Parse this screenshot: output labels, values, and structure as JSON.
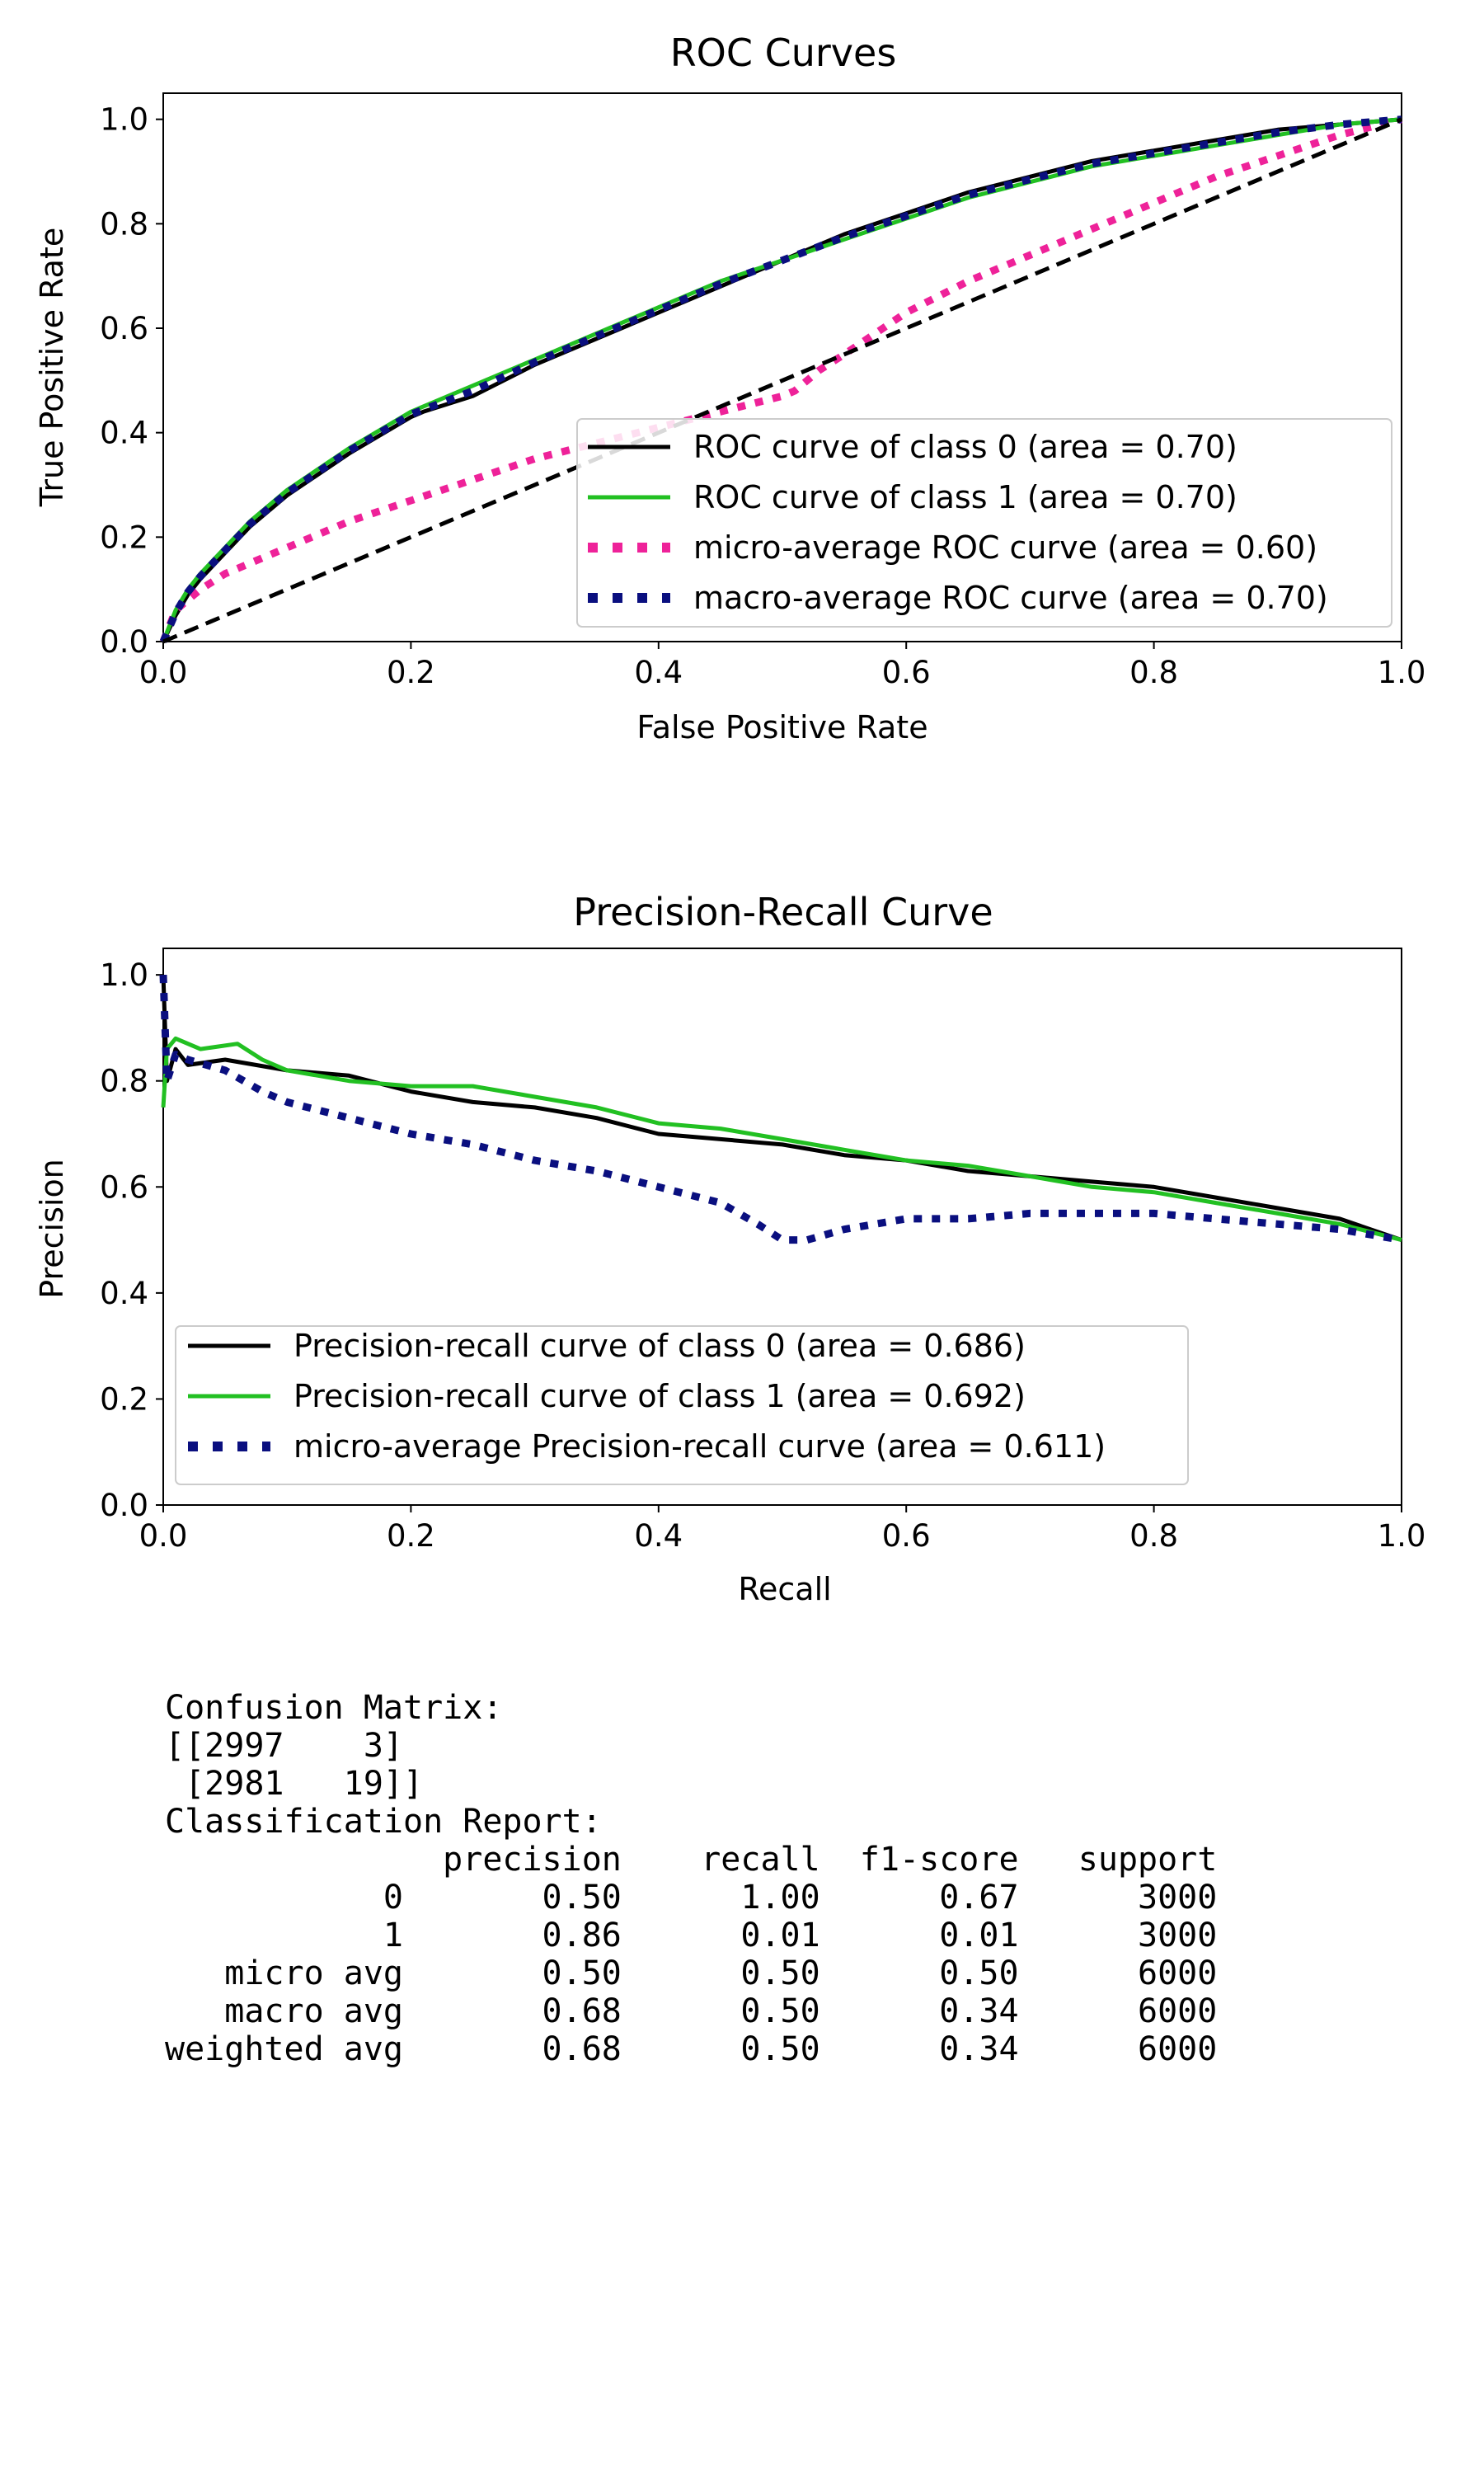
{
  "charts": [
    {
      "id": "roc",
      "type": "line",
      "title": "ROC Curves",
      "xlabel": "False Positive Rate",
      "ylabel": "True Positive Rate",
      "xlim": [
        0,
        1
      ],
      "ylim": [
        0,
        1.05
      ],
      "xticks": [
        "0.0",
        "0.2",
        "0.4",
        "0.6",
        "0.8",
        "1.0"
      ],
      "yticks": [
        "0.0",
        "0.2",
        "0.4",
        "0.6",
        "0.8",
        "1.0"
      ],
      "grid": false,
      "legend_position": "bottom-right",
      "series": [
        {
          "name": "ROC curve of class 0 (area = 0.70)",
          "color": "#000000",
          "style": "solid",
          "points": [
            [
              0,
              0
            ],
            [
              0.01,
              0.05
            ],
            [
              0.02,
              0.09
            ],
            [
              0.03,
              0.12
            ],
            [
              0.05,
              0.17
            ],
            [
              0.07,
              0.22
            ],
            [
              0.1,
              0.28
            ],
            [
              0.15,
              0.36
            ],
            [
              0.2,
              0.43
            ],
            [
              0.21,
              0.44
            ],
            [
              0.25,
              0.47
            ],
            [
              0.3,
              0.53
            ],
            [
              0.35,
              0.58
            ],
            [
              0.4,
              0.63
            ],
            [
              0.45,
              0.68
            ],
            [
              0.5,
              0.73
            ],
            [
              0.55,
              0.78
            ],
            [
              0.6,
              0.82
            ],
            [
              0.65,
              0.86
            ],
            [
              0.7,
              0.89
            ],
            [
              0.75,
              0.92
            ],
            [
              0.8,
              0.94
            ],
            [
              0.85,
              0.96
            ],
            [
              0.9,
              0.98
            ],
            [
              0.95,
              0.99
            ],
            [
              1,
              1
            ]
          ]
        },
        {
          "name": "ROC curve of class 1 (area = 0.70)",
          "color": "#22c022",
          "style": "solid",
          "points": [
            [
              0,
              0
            ],
            [
              0.01,
              0.06
            ],
            [
              0.02,
              0.1
            ],
            [
              0.03,
              0.13
            ],
            [
              0.05,
              0.18
            ],
            [
              0.07,
              0.23
            ],
            [
              0.1,
              0.29
            ],
            [
              0.15,
              0.37
            ],
            [
              0.2,
              0.44
            ],
            [
              0.25,
              0.49
            ],
            [
              0.3,
              0.54
            ],
            [
              0.35,
              0.59
            ],
            [
              0.4,
              0.64
            ],
            [
              0.45,
              0.69
            ],
            [
              0.5,
              0.73
            ],
            [
              0.55,
              0.77
            ],
            [
              0.6,
              0.81
            ],
            [
              0.65,
              0.85
            ],
            [
              0.7,
              0.88
            ],
            [
              0.75,
              0.91
            ],
            [
              0.8,
              0.93
            ],
            [
              0.85,
              0.95
            ],
            [
              0.9,
              0.97
            ],
            [
              0.95,
              0.99
            ],
            [
              1,
              1
            ]
          ]
        },
        {
          "name": "micro-average ROC curve (area = 0.60)",
          "color": "#ee2299",
          "style": "dotted",
          "points": [
            [
              0,
              0
            ],
            [
              0.01,
              0.06
            ],
            [
              0.03,
              0.1
            ],
            [
              0.05,
              0.13
            ],
            [
              0.1,
              0.18
            ],
            [
              0.15,
              0.23
            ],
            [
              0.2,
              0.27
            ],
            [
              0.25,
              0.31
            ],
            [
              0.3,
              0.35
            ],
            [
              0.35,
              0.38
            ],
            [
              0.4,
              0.41
            ],
            [
              0.45,
              0.44
            ],
            [
              0.5,
              0.47
            ],
            [
              0.51,
              0.48
            ],
            [
              0.53,
              0.52
            ],
            [
              0.55,
              0.55
            ],
            [
              0.6,
              0.63
            ],
            [
              0.65,
              0.69
            ],
            [
              0.7,
              0.74
            ],
            [
              0.75,
              0.79
            ],
            [
              0.8,
              0.84
            ],
            [
              0.85,
              0.89
            ],
            [
              0.9,
              0.93
            ],
            [
              0.95,
              0.97
            ],
            [
              1,
              1
            ]
          ]
        },
        {
          "name": "macro-average ROC curve (area = 0.70)",
          "color": "#0a0f7f",
          "style": "dotted",
          "points": [
            [
              0,
              0
            ],
            [
              0.01,
              0.055
            ],
            [
              0.02,
              0.095
            ],
            [
              0.03,
              0.125
            ],
            [
              0.05,
              0.175
            ],
            [
              0.07,
              0.225
            ],
            [
              0.1,
              0.285
            ],
            [
              0.15,
              0.365
            ],
            [
              0.2,
              0.435
            ],
            [
              0.25,
              0.48
            ],
            [
              0.3,
              0.535
            ],
            [
              0.35,
              0.585
            ],
            [
              0.4,
              0.635
            ],
            [
              0.45,
              0.685
            ],
            [
              0.5,
              0.73
            ],
            [
              0.55,
              0.775
            ],
            [
              0.6,
              0.815
            ],
            [
              0.65,
              0.855
            ],
            [
              0.7,
              0.885
            ],
            [
              0.75,
              0.915
            ],
            [
              0.8,
              0.935
            ],
            [
              0.85,
              0.955
            ],
            [
              0.9,
              0.975
            ],
            [
              0.95,
              0.99
            ],
            [
              1,
              1
            ]
          ]
        },
        {
          "name": "",
          "color": "#000000",
          "style": "dashed",
          "points": [
            [
              0,
              0
            ],
            [
              1,
              1
            ]
          ]
        }
      ]
    },
    {
      "id": "pr",
      "type": "line",
      "title": "Precision-Recall Curve",
      "xlabel": "Recall",
      "ylabel": "Precision",
      "xlim": [
        0,
        1
      ],
      "ylim": [
        0,
        1.05
      ],
      "xticks": [
        "0.0",
        "0.2",
        "0.4",
        "0.6",
        "0.8",
        "1.0"
      ],
      "yticks": [
        "0.0",
        "0.2",
        "0.4",
        "0.6",
        "0.8",
        "1.0"
      ],
      "grid": false,
      "legend_position": "bottom-left",
      "series": [
        {
          "name": "Precision-recall curve of class 0 (area = 0.686)",
          "color": "#000000",
          "style": "solid",
          "points": [
            [
              0,
              1
            ],
            [
              0.003,
              0.8
            ],
            [
              0.01,
              0.86
            ],
            [
              0.02,
              0.83
            ],
            [
              0.05,
              0.84
            ],
            [
              0.1,
              0.82
            ],
            [
              0.15,
              0.81
            ],
            [
              0.2,
              0.78
            ],
            [
              0.25,
              0.76
            ],
            [
              0.3,
              0.75
            ],
            [
              0.35,
              0.73
            ],
            [
              0.4,
              0.7
            ],
            [
              0.45,
              0.69
            ],
            [
              0.5,
              0.68
            ],
            [
              0.55,
              0.66
            ],
            [
              0.6,
              0.65
            ],
            [
              0.65,
              0.63
            ],
            [
              0.7,
              0.62
            ],
            [
              0.75,
              0.61
            ],
            [
              0.8,
              0.6
            ],
            [
              0.85,
              0.58
            ],
            [
              0.9,
              0.56
            ],
            [
              0.95,
              0.54
            ],
            [
              1,
              0.5
            ]
          ]
        },
        {
          "name": "Precision-recall curve of class 1 (area = 0.692)",
          "color": "#22c022",
          "style": "solid",
          "points": [
            [
              0,
              0.75
            ],
            [
              0.003,
              0.86
            ],
            [
              0.01,
              0.88
            ],
            [
              0.03,
              0.86
            ],
            [
              0.06,
              0.87
            ],
            [
              0.08,
              0.84
            ],
            [
              0.1,
              0.82
            ],
            [
              0.15,
              0.8
            ],
            [
              0.2,
              0.79
            ],
            [
              0.25,
              0.79
            ],
            [
              0.3,
              0.77
            ],
            [
              0.35,
              0.75
            ],
            [
              0.4,
              0.72
            ],
            [
              0.45,
              0.71
            ],
            [
              0.5,
              0.69
            ],
            [
              0.55,
              0.67
            ],
            [
              0.6,
              0.65
            ],
            [
              0.65,
              0.64
            ],
            [
              0.7,
              0.62
            ],
            [
              0.75,
              0.6
            ],
            [
              0.8,
              0.59
            ],
            [
              0.85,
              0.57
            ],
            [
              0.9,
              0.55
            ],
            [
              0.95,
              0.53
            ],
            [
              1,
              0.5
            ]
          ]
        },
        {
          "name": "micro-average Precision-recall curve (area = 0.611)",
          "color": "#0a0f7f",
          "style": "dotted",
          "points": [
            [
              0,
              1
            ],
            [
              0.003,
              0.8
            ],
            [
              0.01,
              0.85
            ],
            [
              0.02,
              0.84
            ],
            [
              0.05,
              0.82
            ],
            [
              0.08,
              0.78
            ],
            [
              0.1,
              0.76
            ],
            [
              0.15,
              0.73
            ],
            [
              0.2,
              0.7
            ],
            [
              0.25,
              0.68
            ],
            [
              0.3,
              0.65
            ],
            [
              0.35,
              0.63
            ],
            [
              0.4,
              0.6
            ],
            [
              0.45,
              0.57
            ],
            [
              0.48,
              0.53
            ],
            [
              0.5,
              0.5
            ],
            [
              0.52,
              0.5
            ],
            [
              0.55,
              0.52
            ],
            [
              0.6,
              0.54
            ],
            [
              0.65,
              0.54
            ],
            [
              0.7,
              0.55
            ],
            [
              0.75,
              0.55
            ],
            [
              0.8,
              0.55
            ],
            [
              0.85,
              0.54
            ],
            [
              0.9,
              0.53
            ],
            [
              0.95,
              0.52
            ],
            [
              1,
              0.5
            ]
          ]
        }
      ]
    }
  ],
  "report": {
    "lines": [
      "Confusion Matrix:",
      "[[2997    3]",
      " [2981   19]]",
      "",
      "Classification Report:",
      "              precision    recall  f1-score   support",
      "",
      "           0       0.50      1.00      0.67      3000",
      "           1       0.86      0.01      0.01      3000",
      "",
      "   micro avg       0.50      0.50      0.50      6000",
      "   macro avg       0.68      0.50      0.34      6000",
      "weighted avg       0.68      0.50      0.34      6000"
    ]
  }
}
